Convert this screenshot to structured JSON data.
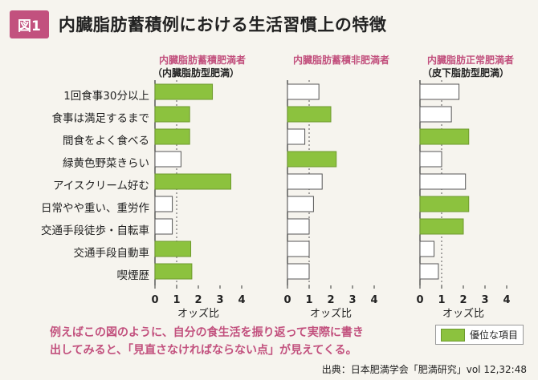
{
  "header": {
    "badge": "図1",
    "title": "内臓脂肪蓄積例における生活習慣上の特徴"
  },
  "chart_data": {
    "type": "bar",
    "orientation": "horizontal",
    "categories": [
      "1回食事30分以上",
      "食事は満足するまで",
      "間食をよく食べる",
      "緑黄色野菜きらい",
      "アイスクリーム好む",
      "日常やや重い、重労作",
      "交通手段徒歩・自転車",
      "交通手段自動車",
      "喫煙歴"
    ],
    "xlabel": "オッズ比",
    "xlim": [
      0,
      4
    ],
    "xticks": [
      "0",
      "1",
      "2",
      "3",
      "4"
    ],
    "reference_line": 1,
    "colors": {
      "highlight": "#8cc23e",
      "normal": "#ffffff",
      "accent": "#c2517e"
    },
    "panels": [
      {
        "title": "内臓脂肪蓄積肥満者",
        "subtitle": "（内臓脂肪型肥満）",
        "values": [
          2.65,
          1.6,
          1.6,
          1.2,
          3.5,
          0.8,
          0.8,
          1.65,
          1.7
        ],
        "highlight": [
          true,
          true,
          true,
          false,
          true,
          false,
          false,
          true,
          true
        ]
      },
      {
        "title": "内臓脂肪蓄積非肥満者",
        "subtitle": "",
        "values": [
          1.45,
          2.0,
          0.8,
          2.25,
          1.6,
          1.2,
          1.0,
          1.0,
          1.0
        ],
        "highlight": [
          false,
          true,
          false,
          true,
          false,
          false,
          false,
          false,
          false
        ]
      },
      {
        "title": "内臓脂肪正常肥満者",
        "subtitle": "（皮下脂肪型肥満）",
        "values": [
          1.8,
          1.45,
          2.25,
          1.0,
          2.1,
          2.25,
          2.0,
          0.65,
          0.85
        ],
        "highlight": [
          false,
          false,
          true,
          false,
          false,
          true,
          true,
          false,
          false
        ]
      }
    ]
  },
  "note": {
    "line1": "例えばこの図のように、自分の食生活を振り返って実際に書き",
    "line2": "出してみると、「見直さなければならない点」が見えてくる。"
  },
  "legend": {
    "label": "優位な項目"
  },
  "source": "出典：日本肥満学会「肥満研究」vol 12,32:48"
}
